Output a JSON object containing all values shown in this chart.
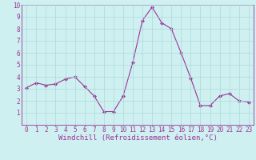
{
  "x": [
    0,
    1,
    2,
    3,
    4,
    5,
    6,
    7,
    8,
    9,
    10,
    11,
    12,
    13,
    14,
    15,
    16,
    17,
    18,
    19,
    20,
    21,
    22,
    23
  ],
  "y": [
    3.1,
    3.5,
    3.3,
    3.4,
    3.8,
    4.0,
    3.2,
    2.4,
    1.1,
    1.1,
    2.4,
    5.2,
    8.7,
    9.8,
    8.5,
    8.0,
    6.0,
    3.9,
    1.6,
    1.6,
    2.4,
    2.6,
    2.0,
    1.9
  ],
  "line_color": "#993399",
  "marker": "D",
  "marker_size": 2,
  "bg_color": "#cff0f0",
  "grid_color": "#aad8d8",
  "xlabel": "Windchill (Refroidissement éolien,°C)",
  "xlim": [
    -0.5,
    23.5
  ],
  "ylim": [
    0,
    10
  ],
  "xticks": [
    0,
    1,
    2,
    3,
    4,
    5,
    6,
    7,
    8,
    9,
    10,
    11,
    12,
    13,
    14,
    15,
    16,
    17,
    18,
    19,
    20,
    21,
    22,
    23
  ],
  "yticks": [
    1,
    2,
    3,
    4,
    5,
    6,
    7,
    8,
    9,
    10
  ],
  "axis_fontsize": 5.5,
  "label_fontsize": 6.5,
  "tick_color": "#993399",
  "spine_color": "#993399"
}
